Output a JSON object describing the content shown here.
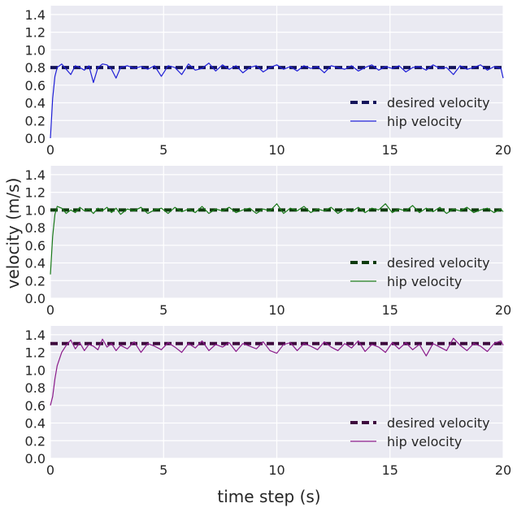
{
  "figure": {
    "xlabel": "time step (s)",
    "ylabel": "velocity (m/s)"
  },
  "chart_data": [
    {
      "type": "line",
      "xlim": [
        0,
        20
      ],
      "ylim": [
        0,
        1.5
      ],
      "xticks": [
        "0",
        "5",
        "10",
        "15",
        "20"
      ],
      "yticks": [
        "0.0",
        "0.2",
        "0.4",
        "0.6",
        "0.8",
        "1.0",
        "1.2",
        "1.4"
      ],
      "grid": true,
      "legend_position": "lower-right",
      "series": [
        {
          "name": "desired velocity",
          "style": "dashed",
          "color": "#14145a",
          "x": [
            0,
            20
          ],
          "y": [
            0.8,
            0.8
          ]
        },
        {
          "name": "hip velocity",
          "style": "solid",
          "color": "#1f1fd6",
          "x": [
            0,
            0.1,
            0.2,
            0.3,
            0.5,
            0.7,
            0.9,
            1.1,
            1.3,
            1.5,
            1.7,
            1.9,
            2.1,
            2.3,
            2.5,
            2.7,
            2.9,
            3.1,
            3.4,
            3.7,
            4.0,
            4.3,
            4.6,
            4.9,
            5.2,
            5.5,
            5.8,
            6.1,
            6.4,
            6.7,
            7.0,
            7.3,
            7.6,
            7.9,
            8.2,
            8.5,
            8.8,
            9.1,
            9.4,
            9.7,
            10.0,
            10.3,
            10.6,
            10.9,
            11.2,
            11.5,
            11.8,
            12.1,
            12.4,
            12.7,
            13.0,
            13.3,
            13.6,
            13.9,
            14.2,
            14.5,
            14.8,
            15.1,
            15.4,
            15.7,
            16.0,
            16.3,
            16.6,
            16.9,
            17.2,
            17.5,
            17.8,
            18.1,
            18.4,
            18.7,
            19.0,
            19.3,
            19.6,
            19.9,
            20.0
          ],
          "y": [
            0.0,
            0.45,
            0.7,
            0.8,
            0.84,
            0.78,
            0.72,
            0.82,
            0.8,
            0.77,
            0.82,
            0.63,
            0.8,
            0.84,
            0.83,
            0.78,
            0.68,
            0.8,
            0.82,
            0.79,
            0.81,
            0.78,
            0.82,
            0.7,
            0.82,
            0.8,
            0.72,
            0.84,
            0.77,
            0.79,
            0.85,
            0.76,
            0.83,
            0.78,
            0.82,
            0.74,
            0.8,
            0.82,
            0.75,
            0.8,
            0.83,
            0.78,
            0.81,
            0.76,
            0.82,
            0.79,
            0.81,
            0.74,
            0.82,
            0.8,
            0.78,
            0.82,
            0.76,
            0.8,
            0.83,
            0.77,
            0.81,
            0.79,
            0.82,
            0.75,
            0.8,
            0.81,
            0.77,
            0.83,
            0.79,
            0.8,
            0.72,
            0.82,
            0.78,
            0.8,
            0.83,
            0.77,
            0.81,
            0.79,
            0.68
          ]
        }
      ]
    },
    {
      "type": "line",
      "xlim": [
        0,
        20
      ],
      "ylim": [
        0,
        1.5
      ],
      "xticks": [
        "0",
        "5",
        "10",
        "15",
        "20"
      ],
      "yticks": [
        "0.0",
        "0.2",
        "0.4",
        "0.6",
        "0.8",
        "1.0",
        "1.2",
        "1.4"
      ],
      "grid": true,
      "legend_position": "lower-right",
      "series": [
        {
          "name": "desired velocity",
          "style": "dashed",
          "color": "#0d3a0d",
          "x": [
            0,
            20
          ],
          "y": [
            1.0,
            1.0
          ]
        },
        {
          "name": "hip velocity",
          "style": "solid",
          "color": "#1a7a1a",
          "x": [
            0,
            0.1,
            0.2,
            0.3,
            0.5,
            0.7,
            0.9,
            1.1,
            1.3,
            1.5,
            1.7,
            1.9,
            2.1,
            2.3,
            2.5,
            2.7,
            2.9,
            3.1,
            3.4,
            3.7,
            4.0,
            4.3,
            4.6,
            4.9,
            5.2,
            5.5,
            5.8,
            6.1,
            6.4,
            6.7,
            7.0,
            7.3,
            7.6,
            7.9,
            8.2,
            8.5,
            8.8,
            9.1,
            9.4,
            9.7,
            10.0,
            10.3,
            10.6,
            10.9,
            11.2,
            11.5,
            11.8,
            12.1,
            12.4,
            12.7,
            13.0,
            13.3,
            13.6,
            13.9,
            14.2,
            14.5,
            14.8,
            15.1,
            15.4,
            15.7,
            16.0,
            16.3,
            16.6,
            16.9,
            17.2,
            17.5,
            17.8,
            18.1,
            18.4,
            18.7,
            19.0,
            19.3,
            19.6,
            19.9,
            20.0
          ],
          "y": [
            0.27,
            0.7,
            0.95,
            1.04,
            1.02,
            0.96,
            1.0,
            0.97,
            1.03,
            0.99,
            1.01,
            0.96,
            1.02,
            0.99,
            1.03,
            0.97,
            1.02,
            0.95,
            1.01,
            0.99,
            1.03,
            0.96,
            1.0,
            1.02,
            0.96,
            1.03,
            0.98,
            1.01,
            0.97,
            1.04,
            0.96,
            1.01,
            0.99,
            1.03,
            0.97,
            1.0,
            1.02,
            0.96,
            1.01,
            0.99,
            1.07,
            0.96,
            1.02,
            0.99,
            1.04,
            0.97,
            1.01,
            0.99,
            1.03,
            0.96,
            1.01,
            0.98,
            1.03,
            0.97,
            1.02,
            1.0,
            1.07,
            0.97,
            1.01,
            0.99,
            1.05,
            0.97,
            1.02,
            0.98,
            1.03,
            0.96,
            1.01,
            0.99,
            1.03,
            0.97,
            1.0,
            1.02,
            0.97,
            1.01,
            0.98
          ]
        }
      ]
    },
    {
      "type": "line",
      "xlim": [
        0,
        20
      ],
      "ylim": [
        0,
        1.5
      ],
      "xticks": [
        "0",
        "5",
        "10",
        "15",
        "20"
      ],
      "yticks": [
        "0.0",
        "0.2",
        "0.4",
        "0.6",
        "0.8",
        "1.0",
        "1.2",
        "1.4"
      ],
      "grid": true,
      "legend_position": "lower-right",
      "series": [
        {
          "name": "desired velocity",
          "style": "dashed",
          "color": "#3d0a3d",
          "x": [
            0,
            20
          ],
          "y": [
            1.3,
            1.3
          ]
        },
        {
          "name": "hip velocity",
          "style": "solid",
          "color": "#8a1a8a",
          "x": [
            0,
            0.1,
            0.2,
            0.3,
            0.5,
            0.7,
            0.9,
            1.1,
            1.3,
            1.5,
            1.7,
            1.9,
            2.1,
            2.3,
            2.5,
            2.7,
            2.9,
            3.1,
            3.4,
            3.7,
            4.0,
            4.3,
            4.6,
            4.9,
            5.2,
            5.5,
            5.8,
            6.1,
            6.4,
            6.7,
            7.0,
            7.3,
            7.6,
            7.9,
            8.2,
            8.5,
            8.8,
            9.1,
            9.4,
            9.7,
            10.0,
            10.3,
            10.6,
            10.9,
            11.2,
            11.5,
            11.8,
            12.1,
            12.4,
            12.7,
            13.0,
            13.3,
            13.6,
            13.9,
            14.2,
            14.5,
            14.8,
            15.1,
            15.4,
            15.7,
            16.0,
            16.3,
            16.6,
            16.9,
            17.2,
            17.5,
            17.8,
            18.1,
            18.4,
            18.7,
            19.0,
            19.3,
            19.6,
            19.9,
            20.0
          ],
          "y": [
            0.6,
            0.7,
            0.9,
            1.05,
            1.2,
            1.28,
            1.34,
            1.24,
            1.31,
            1.22,
            1.29,
            1.27,
            1.23,
            1.35,
            1.26,
            1.3,
            1.22,
            1.28,
            1.24,
            1.32,
            1.2,
            1.3,
            1.27,
            1.23,
            1.31,
            1.26,
            1.2,
            1.3,
            1.25,
            1.33,
            1.22,
            1.29,
            1.26,
            1.31,
            1.21,
            1.3,
            1.27,
            1.24,
            1.32,
            1.22,
            1.19,
            1.29,
            1.31,
            1.22,
            1.3,
            1.27,
            1.23,
            1.32,
            1.26,
            1.22,
            1.3,
            1.25,
            1.33,
            1.21,
            1.29,
            1.26,
            1.2,
            1.31,
            1.24,
            1.31,
            1.23,
            1.29,
            1.16,
            1.3,
            1.26,
            1.22,
            1.36,
            1.28,
            1.22,
            1.3,
            1.27,
            1.21,
            1.3,
            1.33,
            1.28
          ]
        }
      ]
    }
  ]
}
